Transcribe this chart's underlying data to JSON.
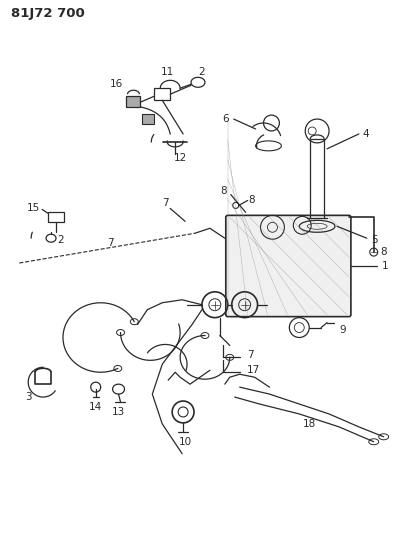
{
  "title": "81J72 700",
  "bg_color": "#ffffff",
  "line_color": "#2a2a2a",
  "title_fontsize": 9.5,
  "label_fontsize": 7.5,
  "fig_width": 3.93,
  "fig_height": 5.33,
  "dpi": 100
}
